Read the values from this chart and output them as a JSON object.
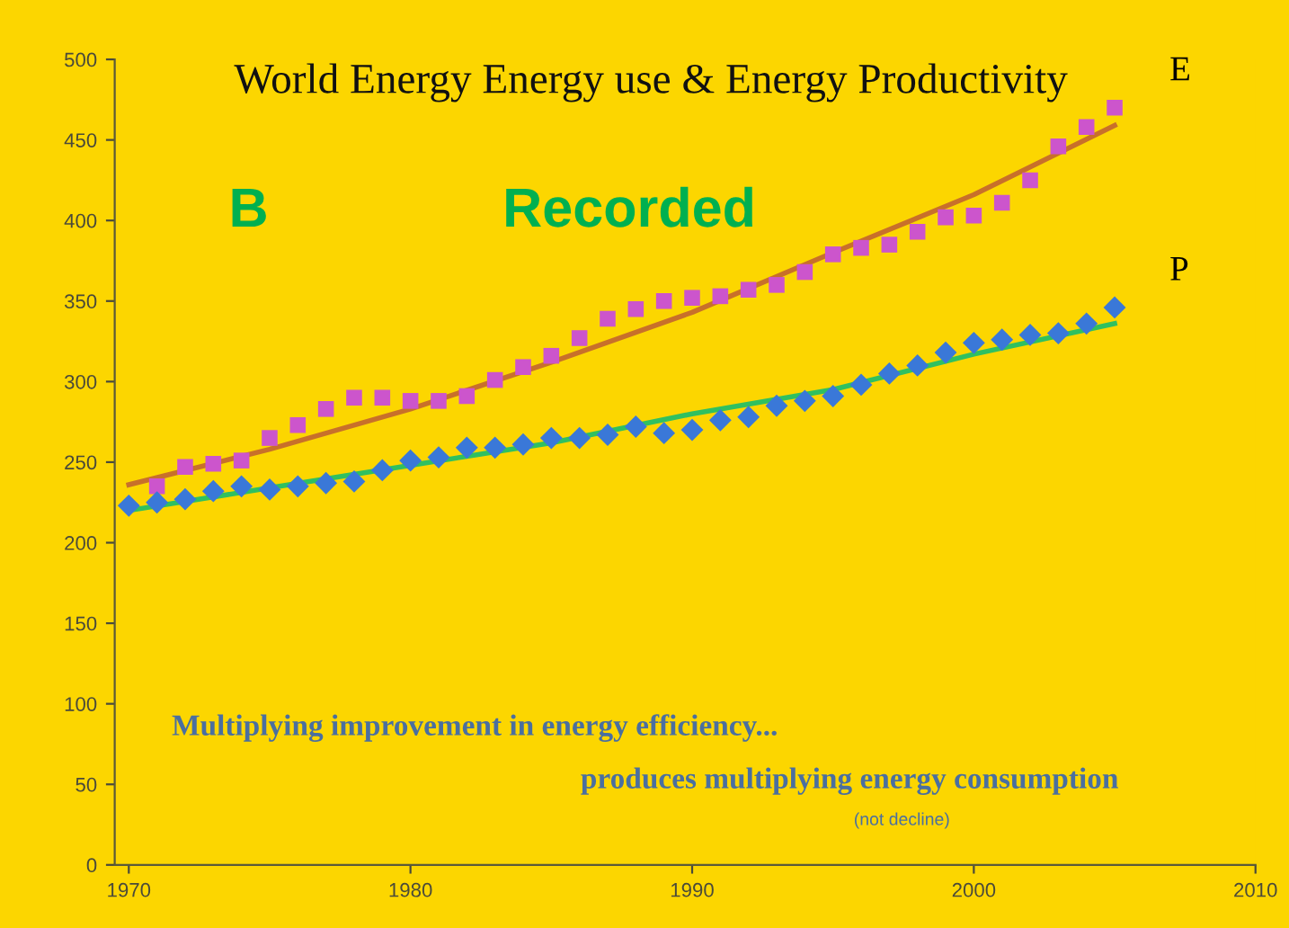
{
  "chart_data": {
    "type": "scatter",
    "title": "World Energy Energy use & Energy Productivity",
    "x": [
      1970,
      1971,
      1972,
      1973,
      1974,
      1975,
      1976,
      1977,
      1978,
      1979,
      1980,
      1981,
      1982,
      1983,
      1984,
      1985,
      1986,
      1987,
      1988,
      1989,
      1990,
      1991,
      1992,
      1993,
      1994,
      1995,
      1996,
      1997,
      1998,
      1999,
      2000,
      2001,
      2002,
      2003,
      2004,
      2005
    ],
    "series": [
      {
        "name": "E",
        "marker": "square",
        "color": "#cc55cc",
        "values": [
          null,
          235,
          247,
          249,
          251,
          265,
          273,
          283,
          290,
          290,
          288,
          288,
          291,
          301,
          309,
          316,
          327,
          339,
          345,
          350,
          352,
          353,
          357,
          360,
          368,
          379,
          383,
          385,
          393,
          402,
          403,
          411,
          425,
          446,
          458,
          470
        ]
      },
      {
        "name": "P",
        "marker": "diamond",
        "color": "#3a78d8",
        "values": [
          223,
          225,
          227,
          232,
          235,
          233,
          235,
          237,
          238,
          245,
          251,
          253,
          259,
          259,
          261,
          265,
          265,
          267,
          272,
          268,
          270,
          276,
          278,
          285,
          288,
          291,
          298,
          305,
          310,
          318,
          324,
          326,
          329,
          330,
          336,
          346
        ]
      },
      {
        "type": "line",
        "marker": "none",
        "color": "#c8702a",
        "x": [
          1970,
          1975,
          1980,
          1985,
          1990,
          1995,
          2000,
          2005
        ],
        "values": [
          236,
          258,
          283,
          312,
          343,
          380,
          416,
          459
        ]
      },
      {
        "type": "line",
        "marker": "none",
        "color": "#30c060",
        "x": [
          1970,
          1975,
          1980,
          1985,
          1990,
          1995,
          2000,
          2005
        ],
        "values": [
          220,
          234,
          248,
          262,
          280,
          295,
          317,
          336
        ]
      }
    ],
    "xlim": [
      1969.5,
      2010
    ],
    "xticks": [
      1970,
      1980,
      1990,
      2000,
      2010
    ],
    "ylim": [
      0,
      500
    ],
    "yticks": [
      0,
      50,
      100,
      150,
      200,
      250,
      300,
      350,
      400,
      450,
      500
    ],
    "grid": false,
    "legend": false,
    "annotations": [
      "B",
      "Recorded",
      "Multiplying improvement in energy efficiency...",
      "produces multiplying energy consumption",
      "(not decline)"
    ]
  }
}
